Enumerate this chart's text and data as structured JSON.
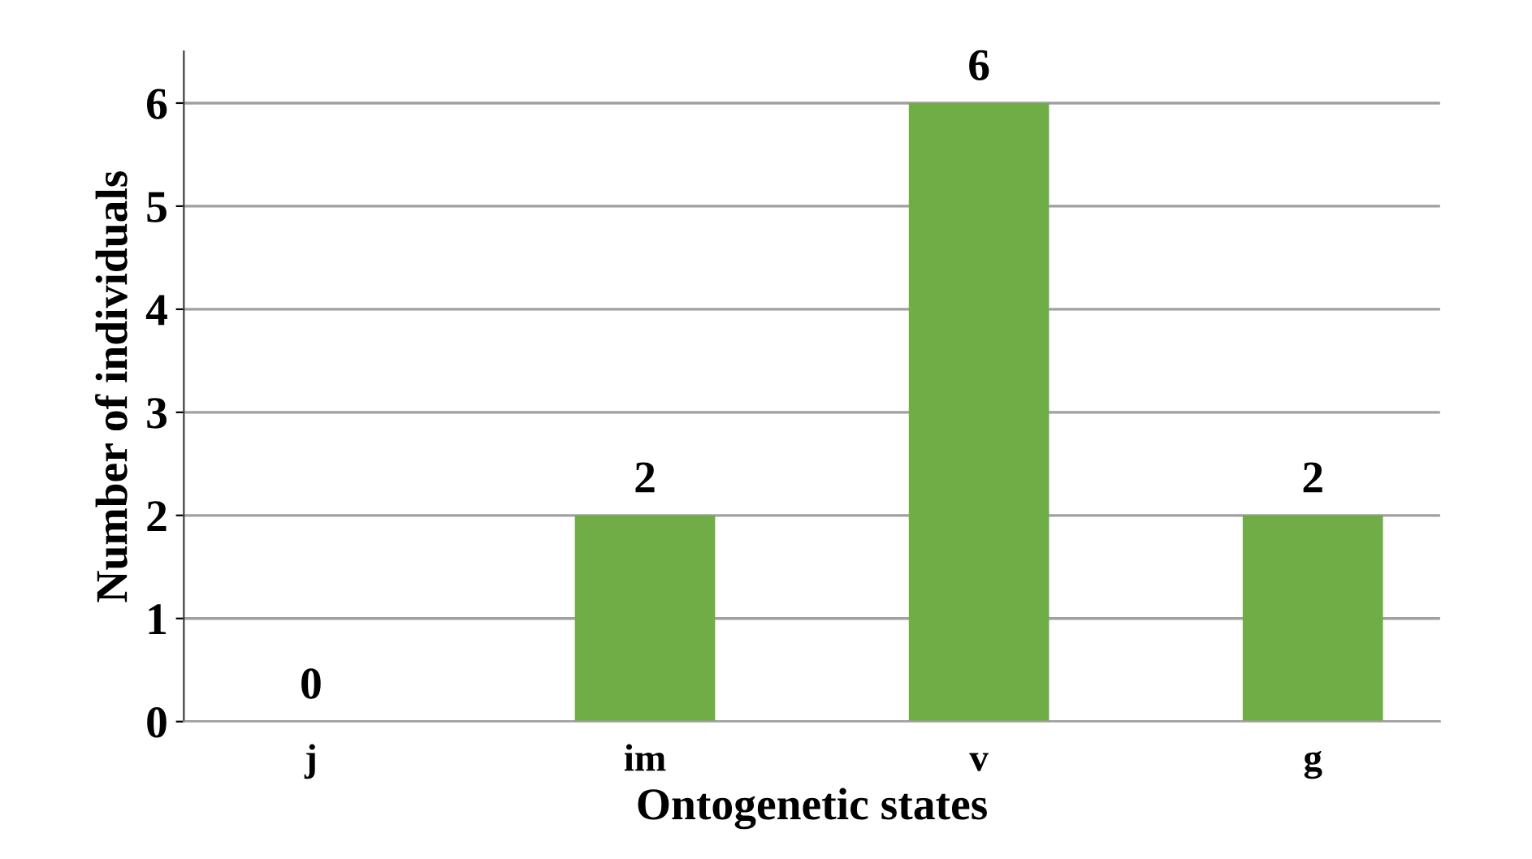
{
  "chart_data": {
    "type": "bar",
    "xlabel": "Ontogenetic states",
    "ylabel": "Number of individuals",
    "categories": [
      "j",
      "im",
      "v",
      "g"
    ],
    "values": [
      0,
      2,
      6,
      2
    ],
    "color": "#70ad47",
    "ylim": [
      0,
      6.5
    ],
    "yticks": [
      0,
      1,
      2,
      3,
      4,
      5,
      6
    ],
    "grid": "y",
    "data_labels": true
  }
}
